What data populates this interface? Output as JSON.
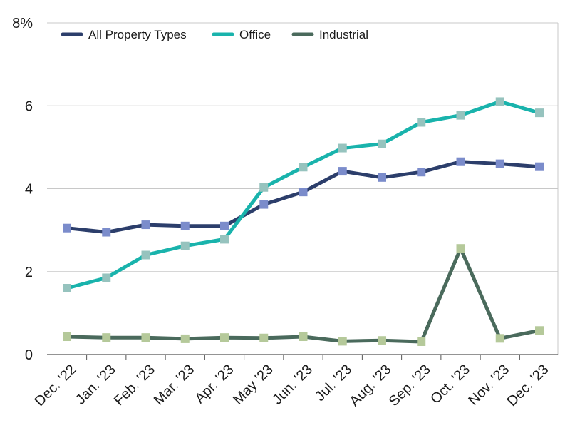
{
  "chart_data": {
    "type": "line",
    "categories": [
      "Dec. '22",
      "Jan. '23",
      "Feb. '23",
      "Mar. '23",
      "Apr. '23",
      "May '23",
      "Jun. '23",
      "Jul. '23",
      "Aug. '23",
      "Sep. '23",
      "Oct. '23",
      "Nov. '23",
      "Dec. '23"
    ],
    "y_ticks": [
      {
        "value": 0,
        "label": "0"
      },
      {
        "value": 2,
        "label": "2"
      },
      {
        "value": 4,
        "label": "4"
      },
      {
        "value": 6,
        "label": "6"
      },
      {
        "value": 8,
        "label": "8%"
      }
    ],
    "ylim": [
      0,
      8
    ],
    "grid": "horizontal",
    "legend_position": "top-left",
    "series": [
      {
        "name": "All Property Types",
        "color": "#2c3e6b",
        "marker_color": "#7b8ccb",
        "values": [
          3.05,
          2.95,
          3.13,
          3.1,
          3.1,
          3.62,
          3.92,
          4.42,
          4.27,
          4.4,
          4.65,
          4.6,
          4.53
        ]
      },
      {
        "name": "Office",
        "color": "#19b3ac",
        "marker_color": "#96c3be",
        "values": [
          1.6,
          1.85,
          2.4,
          2.62,
          2.78,
          4.03,
          4.52,
          4.98,
          5.08,
          5.6,
          5.77,
          6.1,
          5.83
        ]
      },
      {
        "name": "Industrial",
        "color": "#4a6a5c",
        "marker_color": "#b5c99a",
        "values": [
          0.43,
          0.41,
          0.41,
          0.38,
          0.41,
          0.4,
          0.43,
          0.32,
          0.34,
          0.31,
          2.56,
          0.39,
          0.58
        ]
      }
    ]
  }
}
